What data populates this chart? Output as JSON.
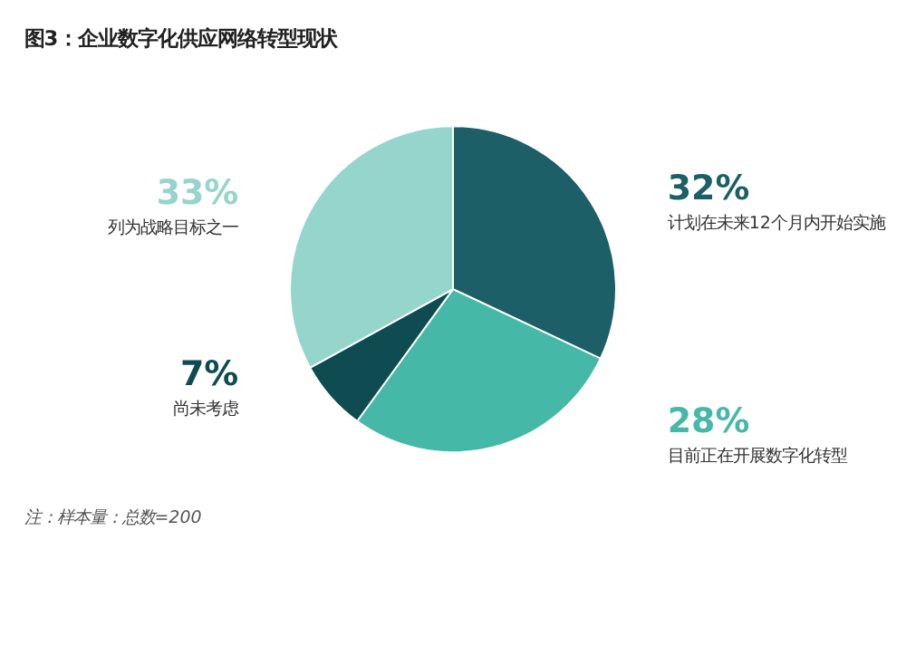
{
  "chart_data": {
    "type": "pie",
    "title": "图3：企业数字化供应网络转型现状",
    "categories": [
      "计划在未来12个月内开始实施",
      "目前正在开展数字化转型",
      "尚未考虑",
      "列为战略目标之一"
    ],
    "values": [
      32,
      28,
      7,
      33
    ],
    "value_labels": [
      "32%",
      "28%",
      "7%",
      "33%"
    ],
    "colors": [
      "#1c5f66",
      "#45b8a8",
      "#0e4c52",
      "#95d5cc"
    ],
    "legend": false,
    "annotations": [
      "注：样本量：总数=200"
    ]
  }
}
